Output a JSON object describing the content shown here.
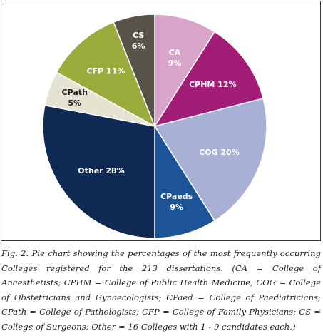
{
  "chart_data": {
    "type": "pie",
    "slices": [
      {
        "name": "CA",
        "value": 9,
        "label": [
          "CA",
          "9%"
        ],
        "color": "#d9a4c9",
        "text_color": "#ffffff"
      },
      {
        "name": "CPHM",
        "value": 12,
        "label": [
          "CPHM 12%"
        ],
        "color": "#a11d76",
        "text_color": "#ffffff"
      },
      {
        "name": "COG",
        "value": 20,
        "label": [
          "COG 20%"
        ],
        "color": "#a9b0d6",
        "text_color": "#ffffff"
      },
      {
        "name": "CPaeds",
        "value": 9,
        "label": [
          "CPaeds",
          "9%"
        ],
        "color": "#1d5498",
        "text_color": "#ffffff"
      },
      {
        "name": "Other",
        "value": 28,
        "label": [
          "Other 28%"
        ],
        "color": "#0f2b54",
        "text_color": "#ffffff"
      },
      {
        "name": "CPath",
        "value": 5,
        "label": [
          "CPath",
          "5%"
        ],
        "color": "#e5e4d3",
        "text_color": "#231f20"
      },
      {
        "name": "CFP",
        "value": 11,
        "label": [
          "CFP 11%"
        ],
        "color": "#9bab3c",
        "text_color": "#ffffff"
      },
      {
        "name": "CS",
        "value": 6,
        "label": [
          "CS",
          "6%"
        ],
        "color": "#575349",
        "text_color": "#ffffff"
      }
    ]
  },
  "caption": "Fig. 2. Pie chart showing the percentages of the most frequently occurring Colleges registered for the 213 dissertations. (CA = College of Anaesthetists; CPHM = College of Public Health Medicine; COG = College of Obstetricians and Gynaecologists; CPaed = College of Paediatricians; CPath = College of Pathologists; CFP = College of Family Physicians; CS = College of Surgeons; Other = 16 Colleges with 1 - 9 candidates each.)"
}
